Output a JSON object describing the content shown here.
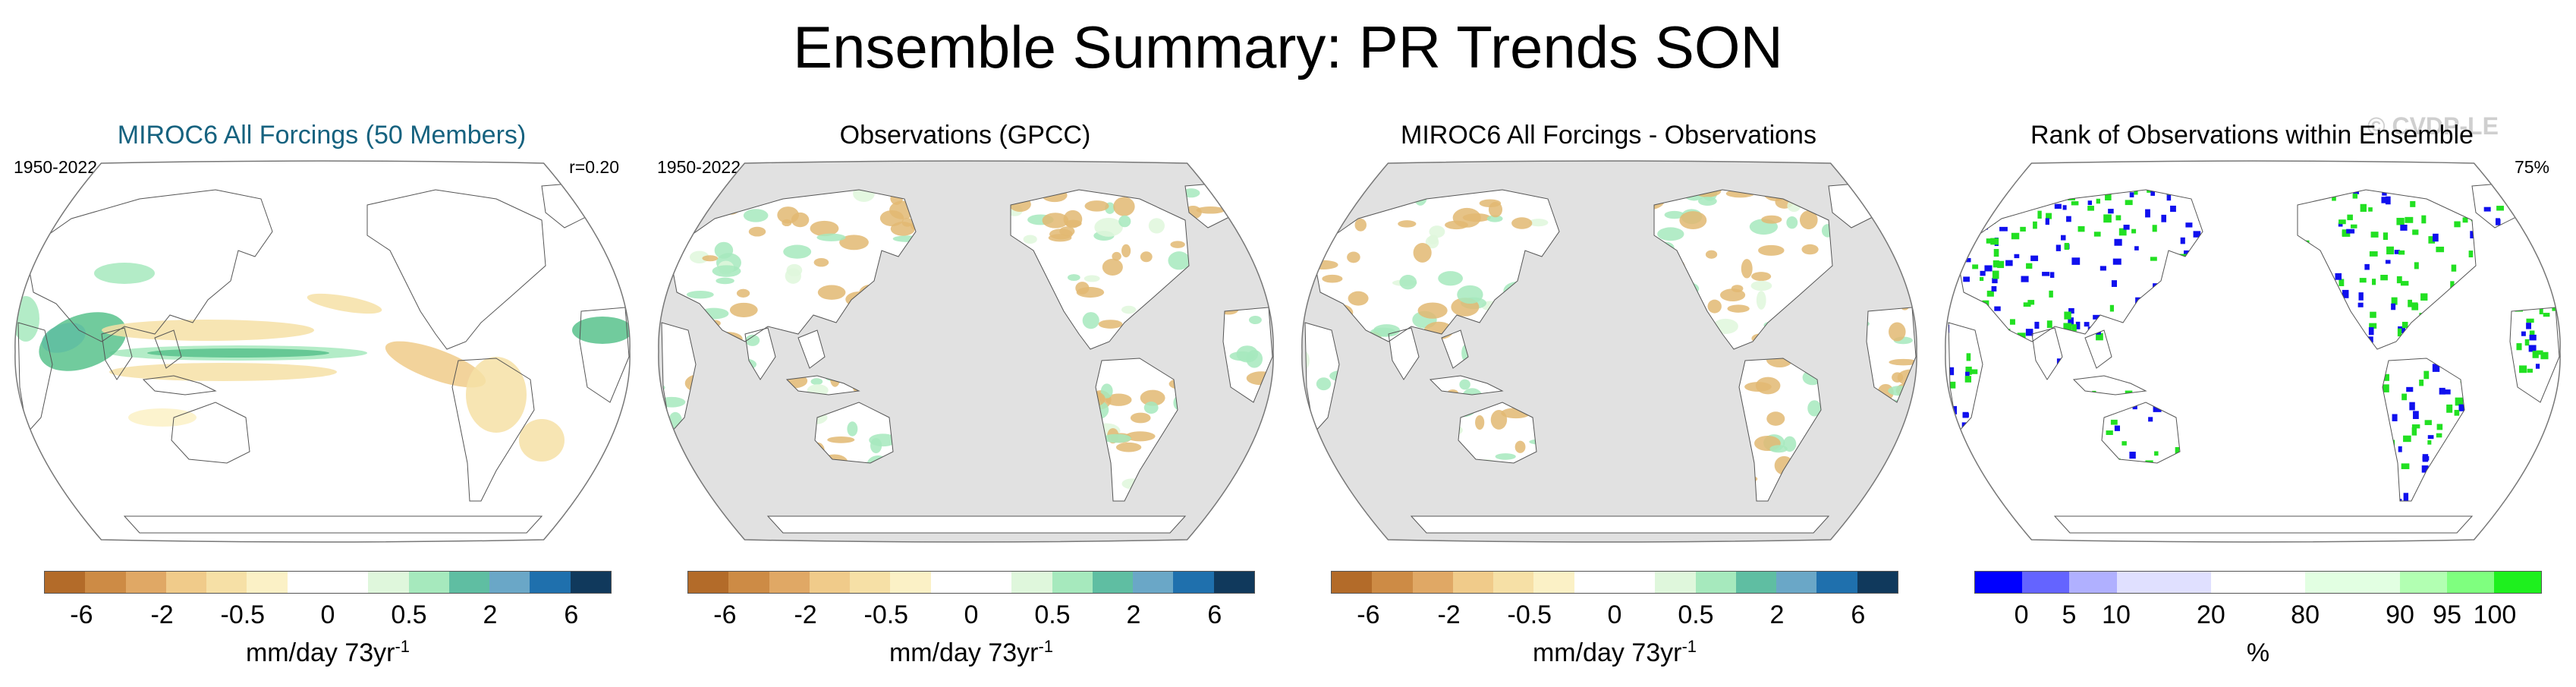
{
  "title": "Ensemble Summary: PR Trends SON",
  "watermark": "© CVDP-LE",
  "colors": {
    "diverging": [
      "#b36b29",
      "#cd8b45",
      "#e0a865",
      "#f0cb8a",
      "#f6e0a6",
      "#fbf1c6",
      "#ffffff",
      "#ffffff",
      "#dff7dc",
      "#a6e9bd",
      "#5fbea2",
      "#6aa7c7",
      "#1f70ad",
      "#10395c"
    ],
    "rank": [
      "#0000ff",
      "#6464ff",
      "#b0b0ff",
      "#e0e0ff",
      "#e0e0ff",
      "#ffffff",
      "#ffffff",
      "#e2ffe2",
      "#e2ffe2",
      "#b2ffb2",
      "#7fff7f",
      "#1ef01e"
    ],
    "ocean_masked": "#e1e1e1",
    "dry": "#e2b872",
    "wet": "#58c28c",
    "blue": "#1010ee",
    "green": "#22e022"
  },
  "panels": [
    {
      "title": "MIROC6 All Forcings (50 Members)",
      "period": "1950-2022",
      "corner_right": "r=0.20",
      "variant": "model",
      "colorbar": "diverging",
      "ticks": [
        "-6",
        "-2",
        "-0.5",
        "0",
        "0.5",
        "2",
        "6"
      ],
      "units": "mm/day 73yr",
      "units_sup": "-1"
    },
    {
      "title": "Observations (GPCC)",
      "period": "1950-2022",
      "corner_right": "",
      "variant": "obs",
      "colorbar": "diverging",
      "ticks": [
        "-6",
        "-2",
        "-0.5",
        "0",
        "0.5",
        "2",
        "6"
      ],
      "units": "mm/day 73yr",
      "units_sup": "-1"
    },
    {
      "title": "MIROC6 All Forcings - Observations",
      "period": "",
      "corner_right": "",
      "variant": "diff",
      "colorbar": "diverging",
      "ticks": [
        "-6",
        "-2",
        "-0.5",
        "0",
        "0.5",
        "2",
        "6"
      ],
      "units": "mm/day 73yr",
      "units_sup": "-1"
    },
    {
      "title": "Rank of Observations within Ensemble",
      "period": "",
      "corner_right": "75%",
      "variant": "rank",
      "colorbar": "rank",
      "ticks": [
        "0",
        "5",
        "10",
        "20",
        "80",
        "90",
        "95",
        "100"
      ],
      "units": "%",
      "units_sup": ""
    }
  ]
}
